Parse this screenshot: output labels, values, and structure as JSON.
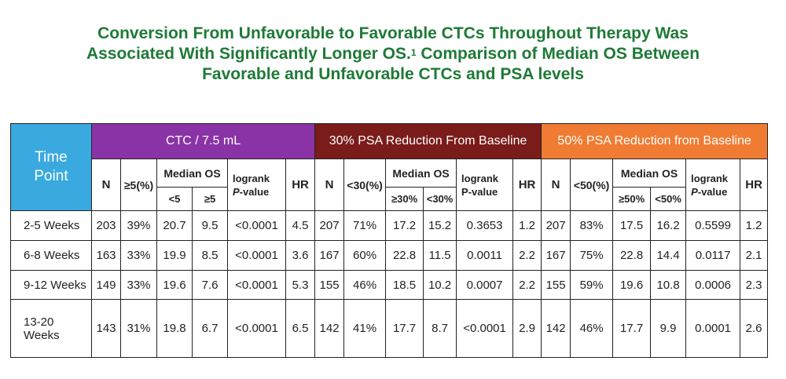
{
  "title": {
    "line1": "Conversion From Unfavorable to Favorable CTCs Throughout Therapy Was",
    "line2a": "Associated With Significantly Longer OS.",
    "line2_sup": "1",
    "line2b": " Comparison of Median OS Between",
    "line3": "Favorable and Unfavorable CTCs and PSA levels"
  },
  "table": {
    "timepoint_header": [
      "Time",
      "Point"
    ],
    "groups": {
      "ctc": "CTC / 7.5 mL",
      "psa30": "30% PSA Reduction From Baseline",
      "psa50": "50% PSA Reduction from Baseline"
    },
    "group_colors": {
      "ctc": "#8a33a6",
      "psa30": "#7a1c1a",
      "psa50": "#f07c33",
      "timepoint": "#39a9e0"
    },
    "headers": {
      "n": "N",
      "ctc_pct": "≥5(%)",
      "psa30_pct": "<30(%)",
      "psa50_pct": "<50(%)",
      "median_os": "Median OS",
      "logrank": "logrank",
      "pvalue": "P-value",
      "hr": "HR",
      "ctc_sub": [
        "<5",
        "≥5"
      ],
      "psa30_sub": [
        "≥30%",
        "<30%"
      ],
      "psa50_sub": [
        "≥50%",
        "<50%"
      ]
    },
    "rows": [
      {
        "tp": "2-5 Weeks",
        "ctc": [
          "203",
          "39%",
          "20.7",
          "9.5",
          "<0.0001",
          "4.5"
        ],
        "p30": [
          "207",
          "71%",
          "17.2",
          "15.2",
          "0.3653",
          "1.2"
        ],
        "p50": [
          "207",
          "83%",
          "17.5",
          "16.2",
          "0.5599",
          "1.2"
        ]
      },
      {
        "tp": "6-8 Weeks",
        "ctc": [
          "163",
          "33%",
          "19.9",
          "8.5",
          "<0.0001",
          "3.6"
        ],
        "p30": [
          "167",
          "60%",
          "22.8",
          "11.5",
          "0.0011",
          "2.2"
        ],
        "p50": [
          "167",
          "75%",
          "22.8",
          "14.4",
          "0.0117",
          "2.1"
        ]
      },
      {
        "tp": "9-12 Weeks",
        "ctc": [
          "149",
          "33%",
          "19.6",
          "7.6",
          "<0.0001",
          "5.3"
        ],
        "p30": [
          "155",
          "46%",
          "18.5",
          "10.2",
          "0.0007",
          "2.2"
        ],
        "p50": [
          "155",
          "59%",
          "19.6",
          "10.8",
          "0.0006",
          "2.3"
        ]
      },
      {
        "tp": "13-20 Weeks",
        "ctc": [
          "143",
          "31%",
          "19.8",
          "6.7",
          "<0.0001",
          "6.5"
        ],
        "p30": [
          "142",
          "41%",
          "17.7",
          "8.7",
          "<0.0001",
          "2.9"
        ],
        "p50": [
          "142",
          "46%",
          "17.7",
          "9.9",
          "0.0001",
          "2.6"
        ]
      }
    ]
  }
}
